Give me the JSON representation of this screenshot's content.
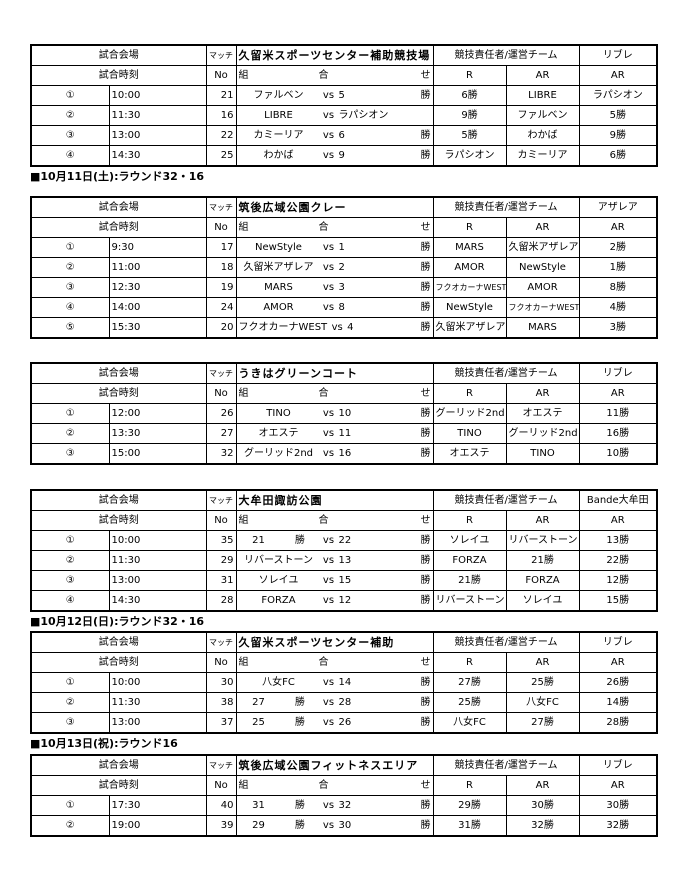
{
  "labels": {
    "venue": "試合会場",
    "time": "試合時刻",
    "match": "マッチ",
    "no": "No",
    "kumi": "組",
    "ai": "合",
    "se": "せ",
    "resp": "競技責任者/運営チーム",
    "r": "R",
    "ar": "AR",
    "vs": "vs"
  },
  "headings": [
    "■10月11日(土):ラウンド32・16",
    "■10月12日(日):ラウンド32・16",
    "■10月13日(祝):ラウンド16"
  ],
  "tables": [
    {
      "venue": "久留米スポーツセンター補助競技場",
      "extra": "リブレ",
      "rows": [
        {
          "n": "①",
          "time": "10:00",
          "no": "21",
          "a": "ファルベン",
          "b": "5",
          "t": "勝",
          "r": "6勝",
          "ar": "LIBRE",
          "ar2": "ラパシオン"
        },
        {
          "n": "②",
          "time": "11:30",
          "no": "16",
          "a": "LIBRE",
          "b": "ラパシオン",
          "t": "",
          "r": "9勝",
          "ar": "ファルベン",
          "ar2": "5勝"
        },
        {
          "n": "③",
          "time": "13:00",
          "no": "22",
          "a": "カミーリア",
          "b": "6",
          "t": "勝",
          "r": "5勝",
          "ar": "わかば",
          "ar2": "9勝"
        },
        {
          "n": "④",
          "time": "14:30",
          "no": "25",
          "a": "わかば",
          "b": "9",
          "t": "勝",
          "r": "ラパシオン",
          "ar": "カミーリア",
          "ar2": "6勝"
        }
      ]
    },
    {
      "venue": "筑後広域公園クレー",
      "extra": "アザレア",
      "rows": [
        {
          "n": "①",
          "time": "9:30",
          "no": "17",
          "a": "NewStyle",
          "b": "1",
          "t": "勝",
          "r": "MARS",
          "ar": "久留米アザレア",
          "ar2": "2勝"
        },
        {
          "n": "②",
          "time": "11:00",
          "no": "18",
          "a": "久留米アザレア",
          "b": "2",
          "t": "勝",
          "r": "AMOR",
          "ar": "NewStyle",
          "ar2": "1勝"
        },
        {
          "n": "③",
          "time": "12:30",
          "no": "19",
          "a": "MARS",
          "b": "3",
          "t": "勝",
          "r": "フクオカーナWEST",
          "ar": "AMOR",
          "ar2": "8勝"
        },
        {
          "n": "④",
          "time": "14:00",
          "no": "24",
          "a": "AMOR",
          "b": "8",
          "t": "勝",
          "r": "NewStyle",
          "ar": "フクオカーナWEST",
          "ar2": "4勝"
        },
        {
          "n": "⑤",
          "time": "15:30",
          "no": "20",
          "a": "フクオカーナWEST",
          "b": "4",
          "t": "勝",
          "r": "久留米アザレア",
          "ar": "MARS",
          "ar2": "3勝"
        }
      ]
    },
    {
      "venue": "うきはグリーンコート",
      "extra": "リブレ",
      "rows": [
        {
          "n": "①",
          "time": "12:00",
          "no": "26",
          "a": "TINO",
          "b": "10",
          "t": "勝",
          "r": "グーリッド2nd",
          "ar": "オエステ",
          "ar2": "11勝"
        },
        {
          "n": "②",
          "time": "13:30",
          "no": "27",
          "a": "オエステ",
          "b": "11",
          "t": "勝",
          "r": "TINO",
          "ar": "グーリッド2nd",
          "ar2": "16勝"
        },
        {
          "n": "③",
          "time": "15:00",
          "no": "32",
          "a": "グーリッド2nd",
          "b": "16",
          "t": "勝",
          "r": "オエステ",
          "ar": "TINO",
          "ar2": "10勝"
        }
      ]
    },
    {
      "venue": "大牟田諏訪公園",
      "extra": "Bande大牟田",
      "rows": [
        {
          "n": "①",
          "time": "10:00",
          "no": "35",
          "a": "21　　　勝",
          "b": "22",
          "t": "勝",
          "r": "ソレイユ",
          "ar": "リバーストーン",
          "ar2": "13勝"
        },
        {
          "n": "②",
          "time": "11:30",
          "no": "29",
          "a": "リバーストーン",
          "b": "13",
          "t": "勝",
          "r": "FORZA",
          "ar": "21勝",
          "ar2": "22勝"
        },
        {
          "n": "③",
          "time": "13:00",
          "no": "31",
          "a": "ソレイユ",
          "b": "15",
          "t": "勝",
          "r": "21勝",
          "ar": "FORZA",
          "ar2": "12勝"
        },
        {
          "n": "④",
          "time": "14:30",
          "no": "28",
          "a": "FORZA",
          "b": "12",
          "t": "勝",
          "r": "リバーストーン",
          "ar": "ソレイユ",
          "ar2": "15勝"
        }
      ]
    },
    {
      "venue": "久留米スポーツセンター補助",
      "extra": "リブレ",
      "rows": [
        {
          "n": "①",
          "time": "10:00",
          "no": "30",
          "a": "八女FC",
          "b": "14",
          "t": "勝",
          "r": "27勝",
          "ar": "25勝",
          "ar2": "26勝"
        },
        {
          "n": "②",
          "time": "11:30",
          "no": "38",
          "a": "27　　　勝",
          "b": "28",
          "t": "勝",
          "r": "25勝",
          "ar": "八女FC",
          "ar2": "14勝"
        },
        {
          "n": "③",
          "time": "13:00",
          "no": "37",
          "a": "25　　　勝",
          "b": "26",
          "t": "勝",
          "r": "八女FC",
          "ar": "27勝",
          "ar2": "28勝"
        }
      ]
    },
    {
      "venue": "筑後広域公園フィットネスエリア",
      "extra": "リブレ",
      "rows": [
        {
          "n": "①",
          "time": "17:30",
          "no": "40",
          "a": "31　　　勝",
          "b": "32",
          "t": "勝",
          "r": "29勝",
          "ar": "30勝",
          "ar2": "30勝"
        },
        {
          "n": "②",
          "time": "19:00",
          "no": "39",
          "a": "29　　　勝",
          "b": "30",
          "t": "勝",
          "r": "31勝",
          "ar": "32勝",
          "ar2": "32勝"
        }
      ]
    }
  ]
}
